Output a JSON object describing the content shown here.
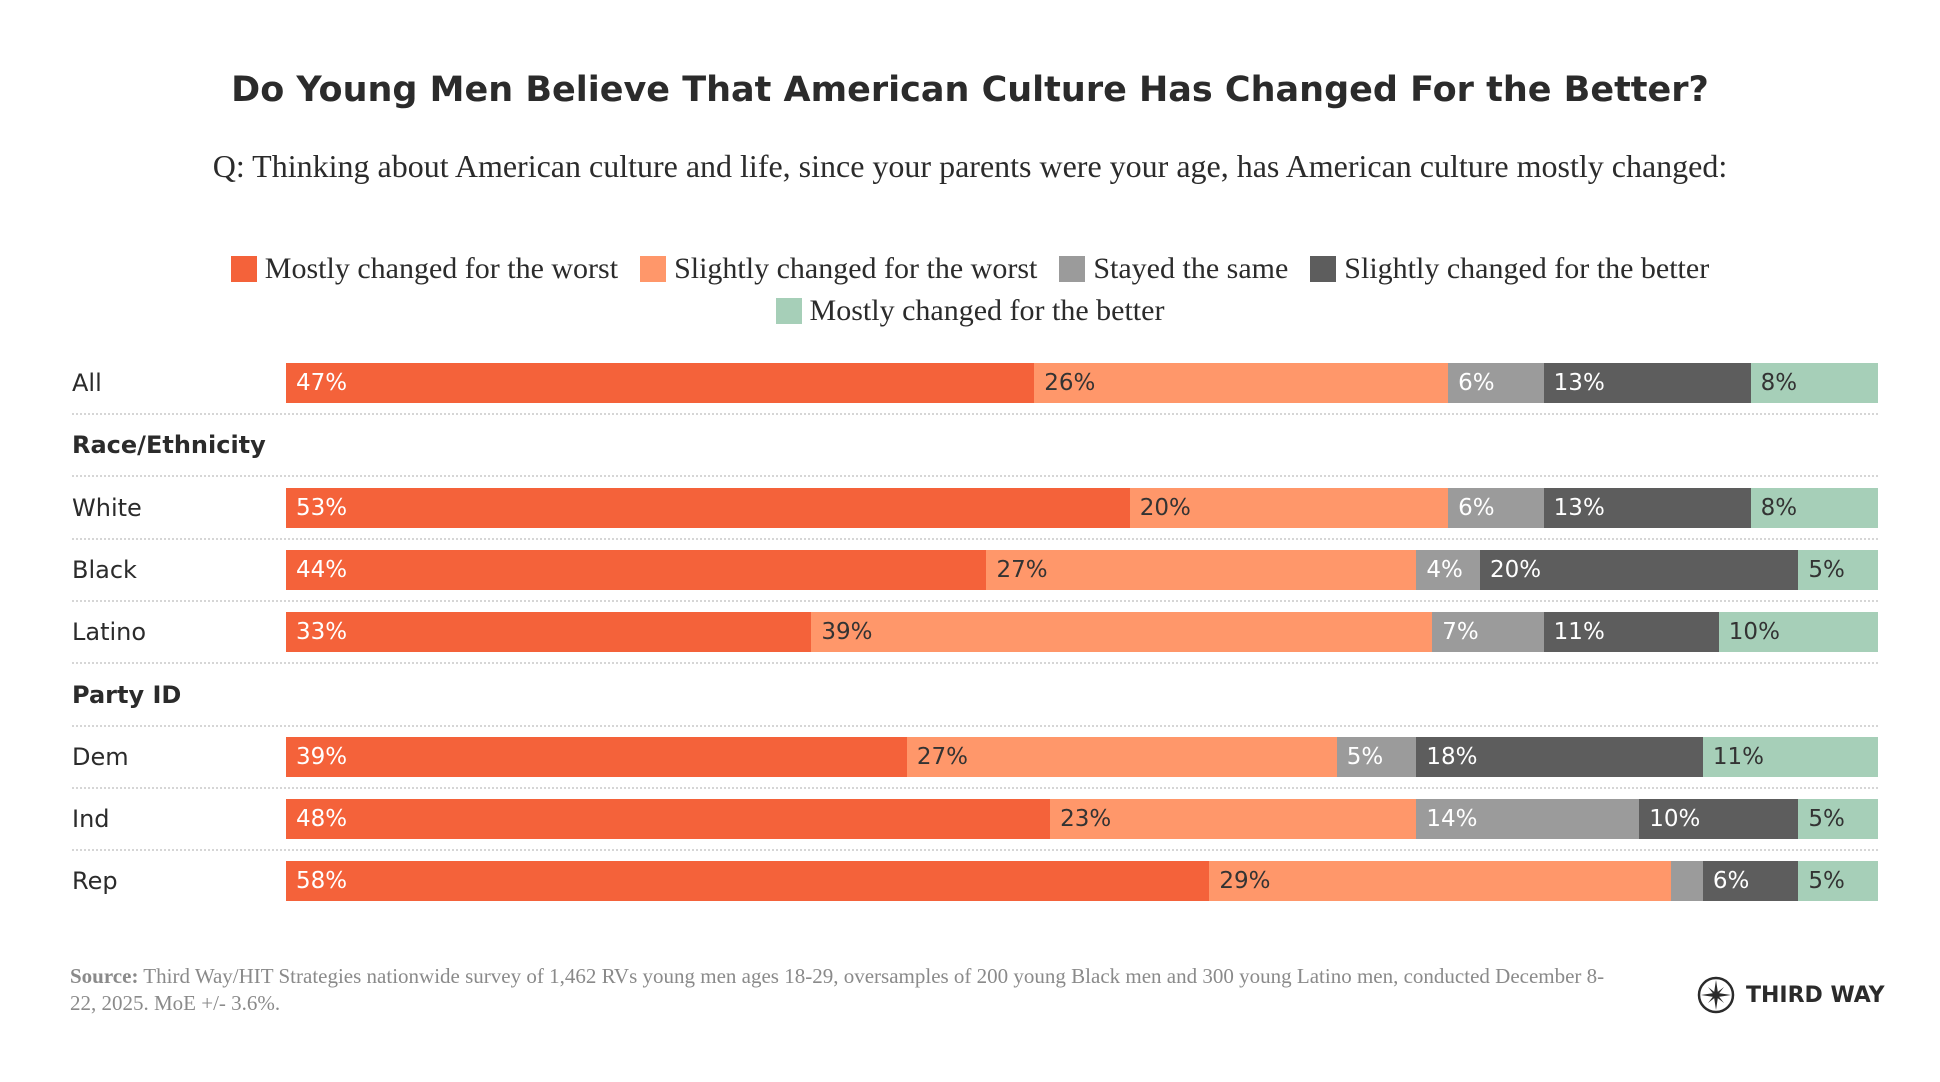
{
  "title": "Do Young Men Believe That American Culture Has Changed For the Better?",
  "subtitle": "Q: Thinking about American culture and life, since your parents were your age, has American culture mostly changed:",
  "source": {
    "label": "Source:",
    "text": " Third Way/HIT Strategies nationwide survey of 1,462 RVs young men ages 18-29, oversamples of 200 young Black men and 300 young Latino men, conducted December 8-22, 2025. MoE +/- 3.6%."
  },
  "logo": {
    "text": "THIRD WAY",
    "icon": "compass-star-icon"
  },
  "chart_data": {
    "type": "bar",
    "orientation": "horizontal",
    "stacked": true,
    "xlim": [
      0,
      100
    ],
    "legend_position": "top",
    "grid": false,
    "series": [
      {
        "name": "Mostly changed for the worst",
        "color": "#f4623a",
        "label_color": "#ffffff"
      },
      {
        "name": "Slightly changed for the worst",
        "color": "#ff976a",
        "label_color": "#333333"
      },
      {
        "name": "Stayed the same",
        "color": "#9b9b9b",
        "label_color": "#ffffff"
      },
      {
        "name": "Slightly changed for the better",
        "color": "#5d5d5d",
        "label_color": "#ffffff"
      },
      {
        "name": "Mostly changed for the better",
        "color": "#a6cfb8",
        "label_color": "#333333"
      }
    ],
    "rows": [
      {
        "label": "All",
        "values": [
          47,
          26,
          6,
          13,
          8
        ],
        "labels": [
          "47%",
          "26%",
          "6%",
          "13%",
          "8%"
        ]
      },
      {
        "label": "Race/Ethnicity",
        "group_header": true
      },
      {
        "label": "White",
        "values": [
          53,
          20,
          6,
          13,
          8
        ],
        "labels": [
          "53%",
          "20%",
          "6%",
          "13%",
          "8%"
        ]
      },
      {
        "label": "Black",
        "values": [
          44,
          27,
          4,
          20,
          5
        ],
        "labels": [
          "44%",
          "27%",
          "4%",
          "20%",
          "5%"
        ]
      },
      {
        "label": "Latino",
        "values": [
          33,
          39,
          7,
          11,
          10
        ],
        "labels": [
          "33%",
          "39%",
          "7%",
          "11%",
          "10%"
        ]
      },
      {
        "label": "Party ID",
        "group_header": true
      },
      {
        "label": "Dem",
        "values": [
          39,
          27,
          5,
          18,
          11
        ],
        "labels": [
          "39%",
          "27%",
          "5%",
          "18%",
          "11%"
        ]
      },
      {
        "label": "Ind",
        "values": [
          48,
          23,
          14,
          10,
          5
        ],
        "labels": [
          "48%",
          "23%",
          "14%",
          "10%",
          "5%"
        ]
      },
      {
        "label": "Rep",
        "values": [
          58,
          29,
          2,
          6,
          5
        ],
        "labels": [
          "58%",
          "29%",
          "",
          "6%",
          "5%"
        ]
      }
    ]
  }
}
